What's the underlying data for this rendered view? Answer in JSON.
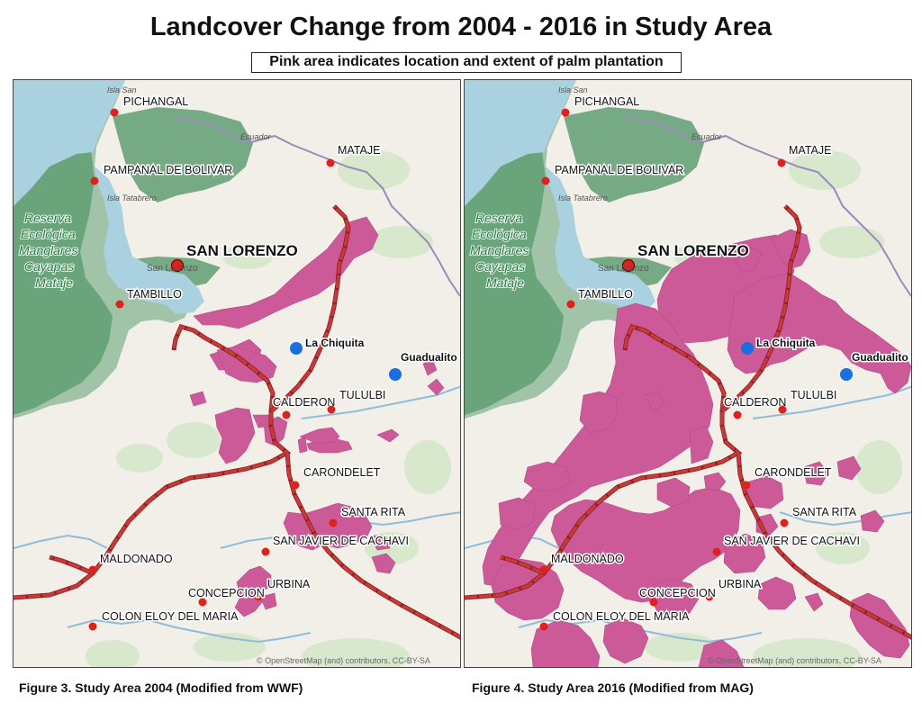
{
  "title": "Landcover Change from 2004 - 2016 in Study Area",
  "subtitle": "Pink area indicates location and extent of palm plantation",
  "legend_colors": {
    "plantation": "#cc5a99",
    "road": "#c83a3a",
    "town_dot": "#e0201d",
    "community_dot": "#1a6fe0",
    "water": "#a9d1e0",
    "mangrove": "#5f9e73",
    "land": "#f2efe8"
  },
  "maps": [
    {
      "caption": "Figure 3. Study Area 2004 (Modified from WWF)",
      "year": 2004,
      "attribution": "© OpenStreetMap (and) contributors, CC-BY-SA"
    },
    {
      "caption": "Figure 4. Study Area 2016 (Modified from MAG)",
      "year": 2016,
      "attribution": "© OpenStreetMap (and) contributors, CC-BY-SA"
    }
  ],
  "places": {
    "pichangal": "PICHANGAL",
    "isla_san": "Isla San",
    "ecuador": "Ecuador",
    "mataje": "MATAJE",
    "pampanal": "PAMPANAL DE BOLIVAR",
    "isla_tatabrero": "Isla Tatabrero",
    "reserva_1": "Reserva",
    "reserva_2": "Ecológica",
    "reserva_3": "Manglares",
    "reserva_4": "Cayapas",
    "reserva_5": "Mataje",
    "san_lorenzo": "SAN LORENZO",
    "san_lorenzo_small": "San Lorenzo",
    "tambillo": "TAMBILLO",
    "la_chiquita": "La Chiquita",
    "guadualito": "Guadualito",
    "calderon": "CALDERON",
    "tululbi": "TULULBI",
    "carondelet": "CARONDELET",
    "santa_rita": "SANTA RITA",
    "san_javier": "SAN JAVIER DE CACHAVI",
    "maldonado": "MALDONADO",
    "urbina": "URBINA",
    "concepcion": "CONCEPCION",
    "colon": "COLON ELOY DEL MARIA"
  }
}
